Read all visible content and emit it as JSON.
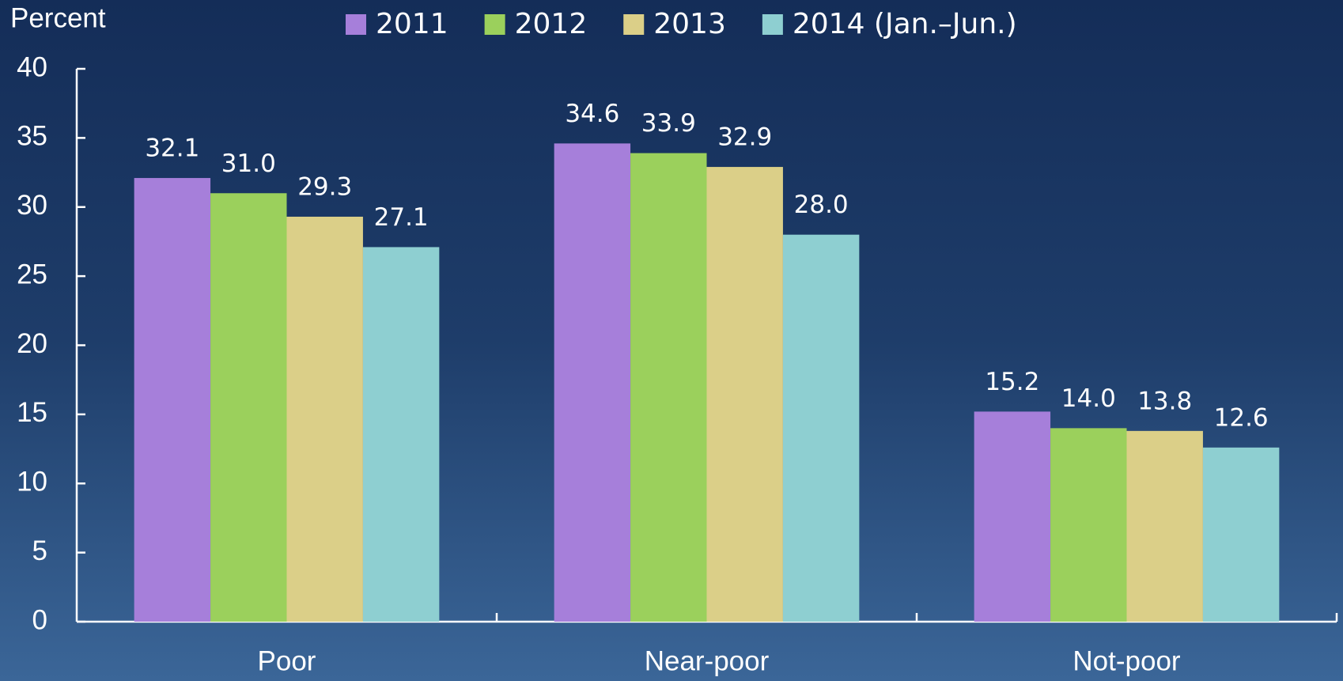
{
  "chart_data": {
    "type": "bar",
    "y_label": "Percent",
    "categories": [
      "Poor",
      "Near-poor",
      "Not-poor"
    ],
    "series": [
      {
        "name": "2011",
        "color": "#a67fda",
        "values": [
          32.1,
          34.6,
          15.2
        ],
        "value_labels": [
          "32.1",
          "34.6",
          "15.2"
        ]
      },
      {
        "name": "2012",
        "color": "#9bd05c",
        "values": [
          31.0,
          33.9,
          14.0
        ],
        "value_labels": [
          "31.0",
          "33.9",
          "14.0"
        ]
      },
      {
        "name": "2013",
        "color": "#dbcf88",
        "values": [
          29.3,
          32.9,
          13.8
        ],
        "value_labels": [
          "29.3",
          "32.9",
          "13.8"
        ]
      },
      {
        "name": "2014 (Jan.–Jun.)",
        "color": "#8ecfd1",
        "values": [
          27.1,
          28.0,
          12.6
        ],
        "value_labels": [
          "27.1",
          "28.0",
          "12.6"
        ]
      }
    ],
    "ylim": [
      0,
      40
    ],
    "yticks": [
      0,
      5,
      10,
      15,
      20,
      25,
      30,
      35,
      40
    ],
    "legend": "top"
  }
}
